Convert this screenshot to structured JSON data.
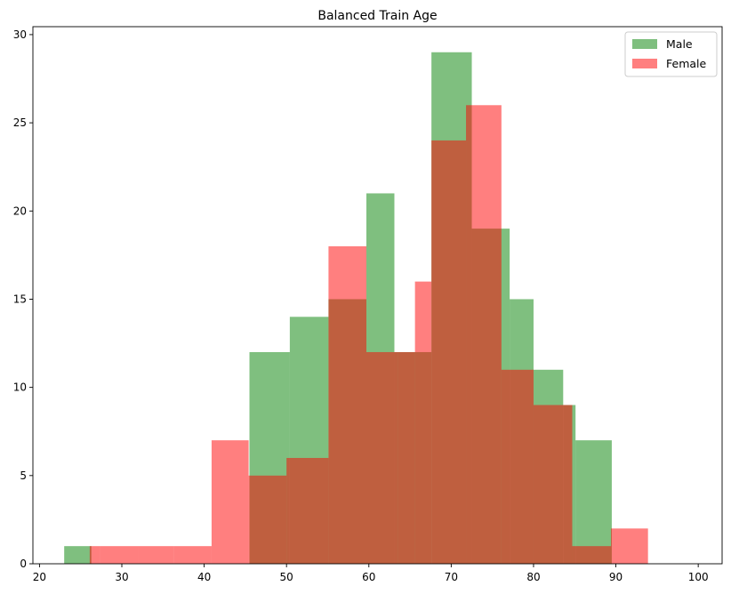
{
  "chart_data": {
    "type": "histogram",
    "title": "Balanced Train Age",
    "xlabel": "",
    "ylabel": "",
    "xlim": [
      19.2,
      102.9
    ],
    "ylim": [
      0,
      30.45
    ],
    "xticks": [
      20,
      30,
      40,
      50,
      60,
      70,
      80,
      90,
      100
    ],
    "yticks": [
      0,
      5,
      10,
      15,
      20,
      25,
      30
    ],
    "grid": false,
    "legend": "top-right",
    "series": [
      {
        "name": "Male",
        "color": "#008000",
        "alpha": 0.5,
        "bin_edges": [
          23.0,
          26.3,
          29.6,
          32.9,
          36.2,
          39.5,
          42.8,
          45.5,
          50.4,
          55.1,
          59.7,
          63.1,
          67.6,
          72.5,
          77.1,
          80.0,
          83.6,
          85.1,
          89.5,
          90.4
        ],
        "counts": [
          1,
          0,
          0,
          0,
          0,
          0,
          0,
          12,
          14,
          15,
          21,
          12,
          29,
          19,
          15,
          11,
          9,
          7,
          0
        ]
      },
      {
        "name": "Female",
        "color": "#ff0000",
        "alpha": 0.5,
        "bin_edges": [
          26.1,
          27.4,
          32.0,
          36.3,
          40.9,
          45.4,
          50.0,
          55.1,
          59.7,
          63.5,
          65.6,
          67.6,
          71.8,
          76.1,
          80.0,
          84.7,
          89.4,
          93.9,
          98.8
        ],
        "counts": [
          1,
          1,
          1,
          1,
          7,
          5,
          6,
          18,
          12,
          12,
          16,
          24,
          26,
          11,
          9,
          1,
          2,
          0
        ]
      }
    ]
  }
}
